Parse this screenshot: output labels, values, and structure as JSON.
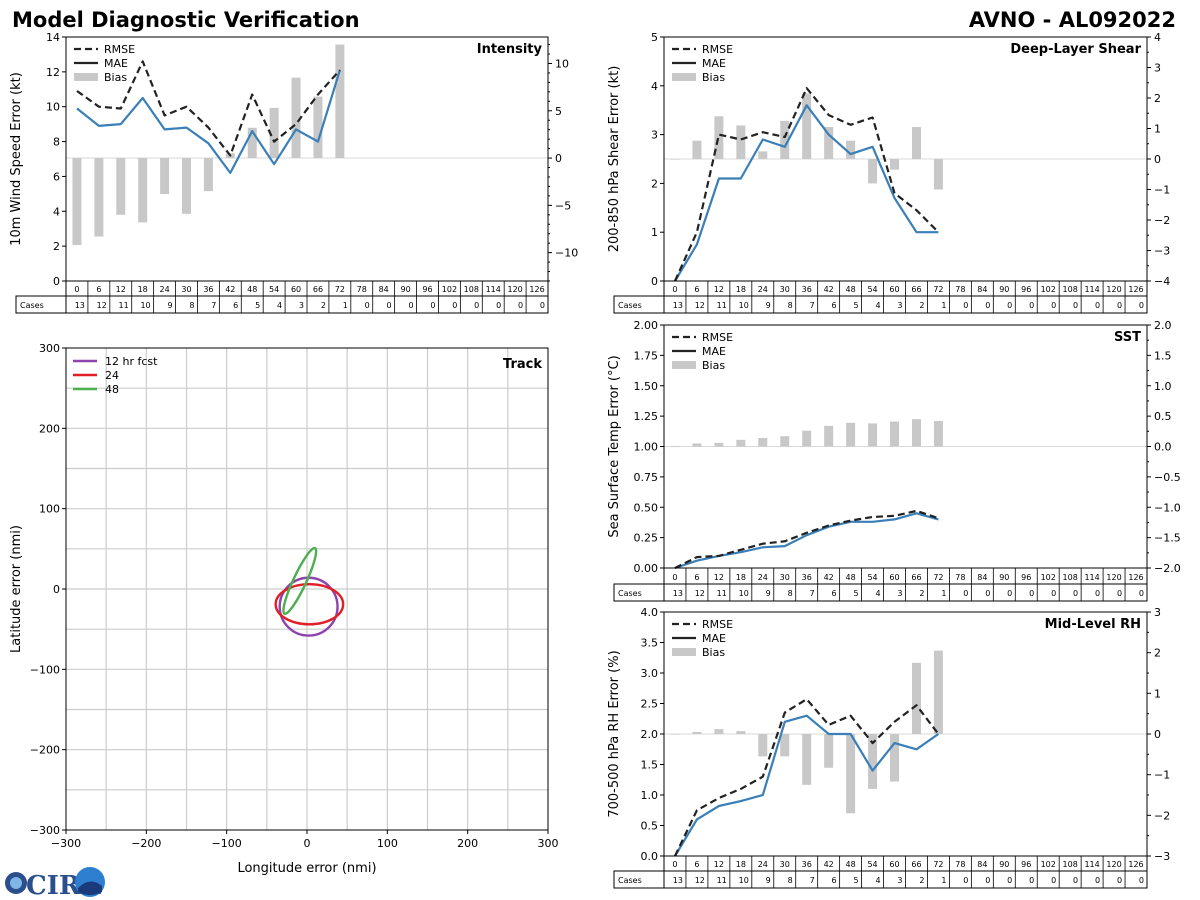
{
  "title_left": "Model Diagnostic Verification",
  "title_right": "AVNO - AL092022",
  "logo_text": "CIRA",
  "colors": {
    "rmse": "#222222",
    "mae": "#3a7fb8",
    "bias": "#c8c8c8",
    "grid": "#cccccc",
    "track12": "#8e44ad",
    "track24": "#e01f27",
    "track48": "#4caf50"
  },
  "legend": {
    "rmse": "RMSE",
    "mae": "MAE",
    "bias": "Bias"
  },
  "cases_label": "Cases",
  "chart_data": [
    {
      "id": "intensity",
      "type": "line",
      "title": "Intensity",
      "ylabel": "10m Wind Speed Error (kt)",
      "ylim": [
        0,
        14
      ],
      "yticks": [
        "0",
        "2",
        "4",
        "6",
        "8",
        "10",
        "12",
        "14"
      ],
      "ytick_values": [
        0,
        2,
        4,
        6,
        8,
        10,
        12,
        14
      ],
      "y2lim": [
        -13,
        12.8
      ],
      "y2ticks": [
        "10",
        "5",
        "0",
        "−5",
        "−10"
      ],
      "y2tick_values": [
        10,
        5,
        0,
        -5,
        -10
      ],
      "hours": [
        "0",
        "6",
        "12",
        "18",
        "24",
        "30",
        "36",
        "42",
        "48",
        "54",
        "60",
        "66",
        "72",
        "78",
        "84",
        "90",
        "96",
        "102",
        "108",
        "114",
        "120",
        "126"
      ],
      "cases": [
        "13",
        "12",
        "11",
        "10",
        "9",
        "8",
        "7",
        "6",
        "5",
        "4",
        "3",
        "2",
        "1",
        "0",
        "0",
        "0",
        "0",
        "0",
        "0",
        "0",
        "0",
        "0"
      ],
      "rmse": [
        10.9,
        10.0,
        9.9,
        12.6,
        9.5,
        10.0,
        8.8,
        7.2,
        10.7,
        8.0,
        9.0,
        10.7,
        12.1
      ],
      "mae": [
        9.9,
        8.9,
        9.0,
        10.5,
        8.7,
        8.8,
        7.9,
        6.2,
        8.6,
        6.7,
        8.7,
        8.0,
        12.1
      ],
      "bias": [
        -9.2,
        -8.3,
        -6.0,
        -6.8,
        -3.8,
        -5.9,
        -3.5,
        0.5,
        3.2,
        5.3,
        8.5,
        6.5,
        12.0
      ]
    },
    {
      "id": "shear",
      "type": "line",
      "title": "Deep-Layer Shear",
      "ylabel": "200-850 hPa Shear Error (kt)",
      "ylim": [
        0,
        5
      ],
      "yticks": [
        "0",
        "1",
        "2",
        "3",
        "4",
        "5"
      ],
      "ytick_values": [
        0,
        1,
        2,
        3,
        4,
        5
      ],
      "y2lim": [
        -4,
        4
      ],
      "y2ticks": [
        "4",
        "3",
        "2",
        "1",
        "0",
        "−1",
        "−2",
        "−3",
        "−4"
      ],
      "y2tick_values": [
        4,
        3,
        2,
        1,
        0,
        -1,
        -2,
        -3,
        -4
      ],
      "hours": [
        "0",
        "6",
        "12",
        "18",
        "24",
        "30",
        "36",
        "42",
        "48",
        "54",
        "60",
        "66",
        "72",
        "78",
        "84",
        "90",
        "96",
        "102",
        "108",
        "114",
        "120",
        "126"
      ],
      "cases": [
        "13",
        "12",
        "11",
        "10",
        "9",
        "8",
        "7",
        "6",
        "5",
        "4",
        "3",
        "2",
        "1",
        "0",
        "0",
        "0",
        "0",
        "0",
        "0",
        "0",
        "0",
        "0"
      ],
      "rmse": [
        0.0,
        1.0,
        3.0,
        2.9,
        3.05,
        2.95,
        3.95,
        3.4,
        3.2,
        3.35,
        1.8,
        1.45,
        1.0
      ],
      "mae": [
        0.0,
        0.75,
        2.1,
        2.1,
        2.9,
        2.75,
        3.6,
        3.0,
        2.6,
        2.75,
        1.7,
        1.0,
        1.0
      ],
      "bias": [
        0.0,
        0.6,
        1.4,
        1.1,
        0.25,
        1.25,
        2.15,
        1.05,
        0.6,
        -0.8,
        -0.35,
        1.05,
        -1.0
      ]
    },
    {
      "id": "sst",
      "type": "line",
      "title": "SST",
      "ylabel": "Sea Surface Temp Error (°C)",
      "ylim": [
        0,
        2
      ],
      "yticks": [
        "0.00",
        "0.25",
        "0.50",
        "0.75",
        "1.00",
        "1.25",
        "1.50",
        "1.75",
        "2.00"
      ],
      "ytick_values": [
        0,
        0.25,
        0.5,
        0.75,
        1.0,
        1.25,
        1.5,
        1.75,
        2.0
      ],
      "y2lim": [
        -2,
        2
      ],
      "y2ticks": [
        "2.0",
        "1.5",
        "1.0",
        "0.5",
        "0.0",
        "−0.5",
        "−1.0",
        "−1.5",
        "−2.0"
      ],
      "y2tick_values": [
        2,
        1.5,
        1,
        0.5,
        0,
        -0.5,
        -1,
        -1.5,
        -2
      ],
      "hours": [
        "0",
        "6",
        "12",
        "18",
        "24",
        "30",
        "36",
        "42",
        "48",
        "54",
        "60",
        "66",
        "72",
        "78",
        "84",
        "90",
        "96",
        "102",
        "108",
        "114",
        "120",
        "126"
      ],
      "cases": [
        "13",
        "12",
        "11",
        "10",
        "9",
        "8",
        "7",
        "6",
        "5",
        "4",
        "3",
        "2",
        "1",
        "0",
        "0",
        "0",
        "0",
        "0",
        "0",
        "0",
        "0",
        "0"
      ],
      "rmse": [
        0.0,
        0.09,
        0.1,
        0.15,
        0.2,
        0.22,
        0.29,
        0.35,
        0.39,
        0.42,
        0.43,
        0.47,
        0.41
      ],
      "mae": [
        0.0,
        0.06,
        0.1,
        0.13,
        0.17,
        0.18,
        0.27,
        0.34,
        0.38,
        0.38,
        0.4,
        0.45,
        0.4
      ],
      "bias": [
        0.0,
        0.05,
        0.06,
        0.11,
        0.14,
        0.17,
        0.26,
        0.34,
        0.39,
        0.38,
        0.41,
        0.45,
        0.42
      ]
    },
    {
      "id": "rh",
      "type": "line",
      "title": "Mid-Level RH",
      "ylabel": "700-500 hPa RH Error (%)",
      "ylim": [
        0,
        4
      ],
      "yticks": [
        "0.0",
        "0.5",
        "1.0",
        "1.5",
        "2.0",
        "2.5",
        "3.0",
        "3.5",
        "4.0"
      ],
      "ytick_values": [
        0,
        0.5,
        1,
        1.5,
        2,
        2.5,
        3,
        3.5,
        4
      ],
      "y2lim": [
        -3,
        3
      ],
      "y2ticks": [
        "3",
        "2",
        "1",
        "0",
        "−1",
        "−2",
        "−3"
      ],
      "y2tick_values": [
        3,
        2,
        1,
        0,
        -1,
        -2,
        -3
      ],
      "hours": [
        "0",
        "6",
        "12",
        "18",
        "24",
        "30",
        "36",
        "42",
        "48",
        "54",
        "60",
        "66",
        "72",
        "78",
        "84",
        "90",
        "96",
        "102",
        "108",
        "114",
        "120",
        "126"
      ],
      "cases": [
        "13",
        "12",
        "11",
        "10",
        "9",
        "8",
        "7",
        "6",
        "5",
        "4",
        "3",
        "2",
        "1",
        "0",
        "0",
        "0",
        "0",
        "0",
        "0",
        "0",
        "0",
        "0"
      ],
      "rmse": [
        0.0,
        0.75,
        0.95,
        1.1,
        1.3,
        2.35,
        2.57,
        2.15,
        2.3,
        1.85,
        2.2,
        2.47,
        2.0
      ],
      "mae": [
        0.0,
        0.6,
        0.82,
        0.9,
        1.0,
        2.2,
        2.3,
        2.0,
        2.0,
        1.4,
        1.85,
        1.75,
        2.0
      ],
      "bias": [
        0.0,
        0.05,
        0.12,
        0.07,
        -0.55,
        -0.55,
        -1.25,
        -0.83,
        -1.95,
        -1.35,
        -1.17,
        1.75,
        2.05
      ]
    },
    {
      "id": "track",
      "type": "scatter",
      "title": "Track",
      "xlabel": "Longitude error (nmi)",
      "ylabel": "Latitude error (nmi)",
      "xlim": [
        -300,
        300
      ],
      "ylim": [
        -300,
        300
      ],
      "xticks": [
        "−300",
        "−200",
        "−100",
        "0",
        "100",
        "200",
        "300"
      ],
      "xtick_values": [
        -300,
        -200,
        -100,
        0,
        100,
        200,
        300
      ],
      "yticks": [
        "300",
        "200",
        "100",
        "0",
        "−100",
        "−200",
        "−300"
      ],
      "ytick_values": [
        300,
        200,
        100,
        0,
        -100,
        -200,
        -300
      ],
      "grid_step": 50,
      "ellipses": [
        {
          "label": "12 hr fcst",
          "color_key": "track12",
          "cx": 2,
          "cy": -22,
          "rx": 36,
          "ry": 36,
          "angle": 0
        },
        {
          "label": "24",
          "color_key": "track24",
          "cx": 3,
          "cy": -19,
          "rx": 42,
          "ry": 25,
          "angle": 0
        },
        {
          "label": "48",
          "color_key": "track48",
          "cx": -9,
          "cy": 10,
          "rx": 45,
          "ry": 8,
          "angle": -65
        }
      ]
    }
  ]
}
